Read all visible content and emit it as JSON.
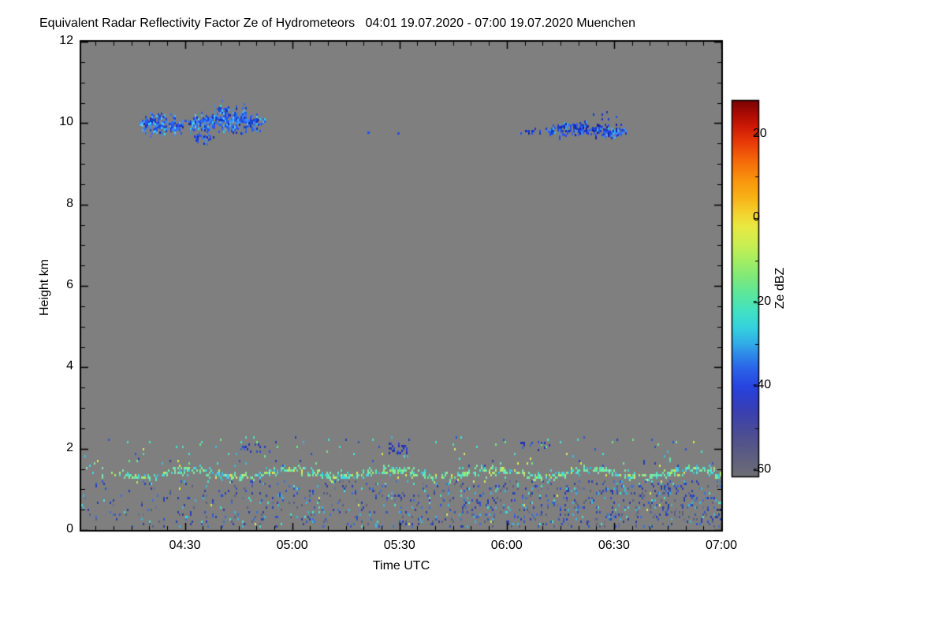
{
  "title": "Equivalent Radar Reflectivity Factor Ze of Hydrometeors   04:01 19.07.2020 - 07:00 19.07.2020 Muenchen",
  "chart_data": {
    "type": "heatmap",
    "title": "Equivalent Radar Reflectivity Factor Ze of Hydrometeors",
    "subtitle": "04:01 19.07.2020 - 07:00 19.07.2020 Muenchen",
    "station": "Muenchen",
    "time_start": "04:01",
    "time_end": "07:00",
    "date": "19.07.2020",
    "xlabel": "Time UTC",
    "ylabel": "Height km",
    "ylim": [
      0,
      12
    ],
    "x_range_minutes": [
      1,
      180
    ],
    "background_color": "#7f7f7f",
    "plot_border_color": "#000000",
    "x_ticks": [
      {
        "label": "04:30",
        "minute": 30
      },
      {
        "label": "05:00",
        "minute": 60
      },
      {
        "label": "05:30",
        "minute": 90
      },
      {
        "label": "06:00",
        "minute": 120
      },
      {
        "label": "06:30",
        "minute": 150
      },
      {
        "label": "07:00",
        "minute": 180
      }
    ],
    "x_minor_tick_minutes": 5,
    "y_ticks": [
      {
        "label": "0",
        "km": 0
      },
      {
        "label": "2",
        "km": 2
      },
      {
        "label": "4",
        "km": 4
      },
      {
        "label": "6",
        "km": 6
      },
      {
        "label": "8",
        "km": 8
      },
      {
        "label": "10",
        "km": 10
      },
      {
        "label": "12",
        "km": 12
      }
    ],
    "y_minor_tick_km": 0.5,
    "colorbar": {
      "label": "Ze dBZ",
      "range": [
        -61.5,
        28
      ],
      "ticks": [
        {
          "label": "20",
          "value": 20
        },
        {
          "label": "0",
          "value": 0
        },
        {
          "label": "-20",
          "value": -20
        },
        {
          "label": "-40",
          "value": -40
        },
        {
          "label": "-60",
          "value": -60
        }
      ],
      "minor_ticks": [
        10,
        -10,
        -30,
        -50
      ],
      "gradient_anchors": [
        [
          -61.5,
          "#6e6e74"
        ],
        [
          -58,
          "#62627e"
        ],
        [
          -54,
          "#55558a"
        ],
        [
          -50,
          "#474a9a"
        ],
        [
          -46,
          "#3a3fb2"
        ],
        [
          -42,
          "#2c3fd0"
        ],
        [
          -40,
          "#2745e0"
        ],
        [
          -36,
          "#2b61e8"
        ],
        [
          -32,
          "#2f8ee8"
        ],
        [
          -30,
          "#31abe8"
        ],
        [
          -26,
          "#35d2de"
        ],
        [
          -22,
          "#43e2c2"
        ],
        [
          -18,
          "#5ce79c"
        ],
        [
          -14,
          "#7fe97a"
        ],
        [
          -10,
          "#a5ee62"
        ],
        [
          -6,
          "#ccee51"
        ],
        [
          -2,
          "#e9e943"
        ],
        [
          1,
          "#f3d430"
        ],
        [
          5,
          "#f8b117"
        ],
        [
          9,
          "#f9960e"
        ],
        [
          14,
          "#f4660a"
        ],
        [
          18,
          "#e83b08"
        ],
        [
          22,
          "#cb1906"
        ],
        [
          25,
          "#a80b04"
        ],
        [
          28,
          "#7a0403"
        ]
      ]
    },
    "features": [
      {
        "type": "band",
        "name": "aerosol-layer-line",
        "t0": 1,
        "t1": 180,
        "hc": 1.42,
        "meander_amp": 0.09,
        "meander_period": 28,
        "sigma": 0.08,
        "h0": 1.2,
        "h1": 1.68,
        "density": 0.6,
        "fade_in_until": 28,
        "fade_floor": 0.35,
        "palette": [
          [
            "#7ce9a4",
            3
          ],
          [
            "#5ce4b6",
            2.2
          ],
          [
            "#41d9df",
            2
          ],
          [
            "#a9e96b",
            1.4
          ],
          [
            "#dfe84e",
            0.8
          ],
          [
            "#39bce4",
            1
          ]
        ]
      },
      {
        "type": "scatter",
        "name": "aerosol-upper-specks",
        "t0": 1,
        "t1": 180,
        "h0": 1.6,
        "h1": 2.3,
        "d0": 0.012,
        "d1": 0.035,
        "palette": [
          [
            "#4adfc9",
            2
          ],
          [
            "#6fe58d",
            1.6
          ],
          [
            "#2f55cc",
            1.4
          ],
          [
            "#3ab9df",
            1.4
          ],
          [
            "#d9e84f",
            0.7
          ],
          [
            "#2a3fae",
            1.2
          ]
        ]
      },
      {
        "type": "scatter",
        "name": "boundary-layer-specks",
        "t0": 1,
        "t1": 180,
        "h0": 0.12,
        "h1": 1.26,
        "d0": 0.05,
        "d1": 0.18,
        "palette": [
          [
            "#2a3fae",
            3
          ],
          [
            "#2f55cc",
            2.2
          ],
          [
            "#3a6fd8",
            1.4
          ],
          [
            "#38b9df",
            1.3
          ],
          [
            "#49e0c8",
            1
          ],
          [
            "#59607f",
            2.4
          ],
          [
            "#6a7094",
            1.2
          ],
          [
            "#d9e84f",
            0.18
          ]
        ]
      },
      {
        "type": "scatter",
        "name": "navy-cluster-1",
        "t0": 45.5,
        "t1": 51,
        "h0": 1.95,
        "h1": 2.18,
        "d0": 0.32,
        "d1": 0.32,
        "palette": [
          [
            "#2333b2",
            3
          ],
          [
            "#2a4ad0",
            1.2
          ],
          [
            "#3668d8",
            0.6
          ]
        ]
      },
      {
        "type": "scatter",
        "name": "navy-cluster-2",
        "t0": 87,
        "t1": 92.5,
        "h0": 1.92,
        "h1": 2.2,
        "d0": 0.3,
        "d1": 0.3,
        "palette": [
          [
            "#2333b2",
            3
          ],
          [
            "#2a4ad0",
            1.2
          ],
          [
            "#3668d8",
            0.6
          ]
        ]
      },
      {
        "type": "scatter",
        "name": "navy-cluster-3",
        "t0": 123,
        "t1": 133,
        "h0": 2.0,
        "h1": 2.2,
        "d0": 0.12,
        "d1": 0.12,
        "palette": [
          [
            "#2333b2",
            3
          ],
          [
            "#2a4ad0",
            1.2
          ],
          [
            "#3668d8",
            0.6
          ]
        ]
      },
      {
        "type": "streak",
        "name": "cirrus-band-1",
        "t0": 17,
        "t1": 29.5,
        "hbase": 9.95,
        "amp": 0.12,
        "thick_min": 0.08,
        "thick_max": 0.28,
        "density": 0.8,
        "taper": 0.3,
        "palette": [
          [
            "#1d41cf",
            3
          ],
          [
            "#2757ee",
            3
          ],
          [
            "#2e6ff2",
            2.2
          ],
          [
            "#3f8df3",
            2
          ],
          [
            "#47b2f2",
            1.6
          ],
          [
            "#58c9f5",
            1
          ],
          [
            "#1a2db0",
            1.4
          ],
          [
            "#35d0f0",
            0.5
          ]
        ]
      },
      {
        "type": "streak",
        "name": "cirrus-band-2",
        "t0": 31,
        "t1": 52.5,
        "hbase": 10.03,
        "amp": 0.13,
        "thick_min": 0.1,
        "thick_max": 0.3,
        "density": 0.82,
        "taper": 0.22,
        "palette": [
          [
            "#1d41cf",
            3
          ],
          [
            "#2757ee",
            3
          ],
          [
            "#2e6ff2",
            2.2
          ],
          [
            "#3f8df3",
            2
          ],
          [
            "#47b2f2",
            1.6
          ],
          [
            "#58c9f5",
            1
          ],
          [
            "#1a2db0",
            1.4
          ],
          [
            "#35d0f0",
            0.5
          ]
        ]
      },
      {
        "type": "streak",
        "name": "cirrus-band-2-lower-lobe",
        "t0": 32,
        "t1": 38,
        "hbase": 9.7,
        "amp": 0.05,
        "thick_min": 0.03,
        "thick_max": 0.13,
        "density": 0.7,
        "taper": 0.3,
        "palette": [
          [
            "#1d41cf",
            3
          ],
          [
            "#2757ee",
            3
          ],
          [
            "#2e6ff2",
            2
          ],
          [
            "#3f8df3",
            1.5
          ],
          [
            "#1a2db0",
            1.4
          ]
        ]
      },
      {
        "type": "streak",
        "name": "cirrus-band-3",
        "t0": 131,
        "t1": 153,
        "hbase": 9.85,
        "amp": 0.05,
        "thick_min": 0.05,
        "thick_max": 0.14,
        "density": 0.85,
        "taper": 0.15,
        "palette": [
          [
            "#1c37c8",
            3
          ],
          [
            "#2450e8",
            2.6
          ],
          [
            "#2e66ee",
            2
          ],
          [
            "#3e8cf0",
            1.4
          ],
          [
            "#38b6ee",
            1
          ],
          [
            "#15239e",
            1.6
          ]
        ]
      },
      {
        "type": "scatter",
        "name": "cirrus-band-3-leading-dots",
        "t0": 122.5,
        "t1": 131,
        "h0": 9.78,
        "h1": 9.94,
        "d0": 0.1,
        "d1": 0.3,
        "palette": [
          [
            "#1c37c8",
            3
          ],
          [
            "#2450e8",
            2
          ],
          [
            "#15239e",
            1.5
          ]
        ]
      },
      {
        "type": "scatter",
        "name": "cirrus-band-3-top-fringe",
        "t0": 140,
        "t1": 151,
        "h0": 10.0,
        "h1": 10.3,
        "d0": 0.04,
        "d1": 0.04,
        "palette": [
          [
            "#1c37c8",
            3
          ],
          [
            "#2450e8",
            2
          ]
        ]
      },
      {
        "type": "dots",
        "name": "isolated-cirrus-specks",
        "color": "#2450e8",
        "points": [
          [
            81,
            9.8
          ],
          [
            89.3,
            9.78
          ],
          [
            29.8,
            10.08
          ]
        ]
      }
    ]
  }
}
